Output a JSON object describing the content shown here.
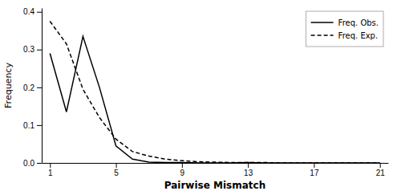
{
  "chart_data": {
    "type": "line",
    "xlabel": "Pairwise Mismatch",
    "ylabel": "Frequency",
    "x": [
      1,
      2,
      3,
      4,
      5,
      6,
      7,
      8,
      9,
      10,
      11,
      12,
      13,
      14,
      15,
      16,
      17,
      18,
      19,
      20,
      21
    ],
    "series": [
      {
        "name": "Freq. Obs.",
        "color": "#000000",
        "line_style": "solid",
        "values": [
          0.29,
          0.135,
          0.335,
          0.2,
          0.045,
          0.01,
          0.002,
          0.001,
          0.001,
          0.0,
          0.0,
          0.0,
          0.001,
          0.0,
          0.0,
          0.0,
          0.0,
          0.0,
          0.0,
          0.0,
          0.0
        ]
      },
      {
        "name": "Freq. Exp.",
        "color": "#000000",
        "line_style": "dashed",
        "values": [
          0.375,
          0.315,
          0.195,
          0.12,
          0.063,
          0.03,
          0.018,
          0.01,
          0.006,
          0.003,
          0.002,
          0.001,
          0.001,
          0.001,
          0.0,
          0.0,
          0.0,
          0.0,
          0.0,
          0.0,
          0.0
        ]
      }
    ],
    "xlim": [
      0.5,
      21.5
    ],
    "ylim": [
      0,
      0.41
    ],
    "xticks": [
      1,
      5,
      9,
      13,
      17,
      21
    ],
    "yticks": [
      {
        "value": 0.0,
        "label": "0.0"
      },
      0.1,
      0.2,
      0.3,
      0.4
    ],
    "legend": "upper right",
    "grid": false
  }
}
